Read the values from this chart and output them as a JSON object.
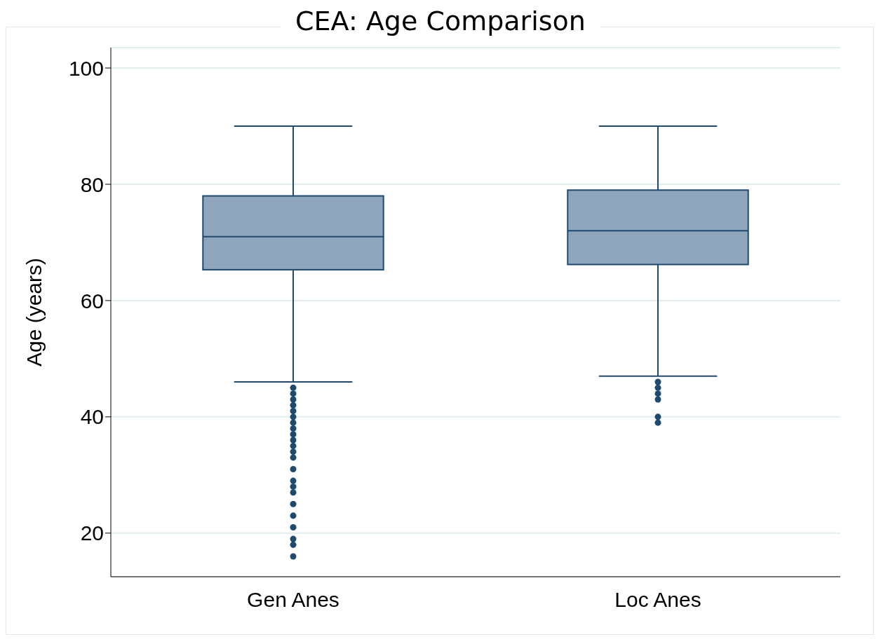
{
  "chart_data": {
    "type": "box",
    "title": "CEA:  Age Comparison",
    "ylabel": "Age (years)",
    "categories": [
      "Gen Anes",
      "Loc Anes"
    ],
    "boxes": [
      {
        "low": 46,
        "q1": 65.3,
        "median": 71,
        "q3": 78,
        "high": 90,
        "outliers": [
          45,
          44,
          43,
          42,
          41,
          40,
          39,
          38,
          37,
          36,
          35,
          34,
          33,
          31,
          29,
          28,
          27,
          25,
          23,
          21,
          19,
          18,
          16
        ]
      },
      {
        "low": 47,
        "q1": 66.2,
        "median": 72,
        "q3": 79,
        "high": 90,
        "outliers": [
          46,
          45,
          44,
          43,
          40,
          39
        ]
      }
    ],
    "color": "#8ea5bb",
    "ylim": [
      12.5,
      103.5
    ],
    "yticks": [
      20,
      40,
      60,
      80,
      100
    ],
    "grid": "y",
    "marker": "circle"
  }
}
